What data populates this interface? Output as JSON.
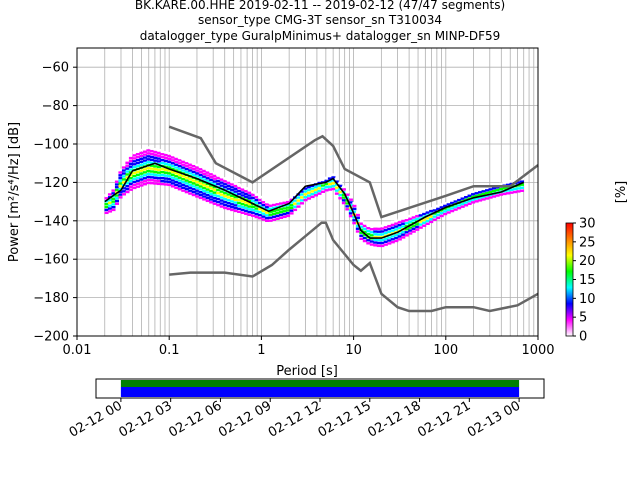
{
  "chart_data": {
    "type": "heatmap",
    "title_lines": [
      "BK.KARE.00.HHE   2019-02-11 -- 2019-02-12  (47/47 segments)",
      "sensor_type CMG-3T sensor_sn T310034",
      "datalogger_type GuralpMinimus+ datalogger_sn MINP-DF59"
    ],
    "xlabel": "Period [s]",
    "ylabel": "Power [m²/s⁴/Hz] [dB]",
    "x_scale": "log",
    "xlim": [
      0.01,
      1000
    ],
    "ylim": [
      -200,
      -50
    ],
    "x_ticks": [
      {
        "value": 0.01,
        "label": "0.01"
      },
      {
        "value": 0.1,
        "label": "0.1"
      },
      {
        "value": 1,
        "label": "1"
      },
      {
        "value": 10,
        "label": "10"
      },
      {
        "value": 100,
        "label": "100"
      },
      {
        "value": 1000,
        "label": "1000"
      }
    ],
    "y_ticks": [
      {
        "value": -60,
        "label": "−60"
      },
      {
        "value": -80,
        "label": "−80"
      },
      {
        "value": -100,
        "label": "−100"
      },
      {
        "value": -120,
        "label": "−120"
      },
      {
        "value": -140,
        "label": "−140"
      },
      {
        "value": -160,
        "label": "−160"
      },
      {
        "value": -180,
        "label": "−180"
      },
      {
        "value": -200,
        "label": "−200"
      }
    ],
    "grid": true,
    "colorbar": {
      "label": "[%]",
      "range": [
        0,
        30
      ],
      "ticks": [
        {
          "value": 0,
          "label": "0"
        },
        {
          "value": 5,
          "label": "5"
        },
        {
          "value": 10,
          "label": "10"
        },
        {
          "value": 15,
          "label": "15"
        },
        {
          "value": 20,
          "label": "20"
        },
        {
          "value": 25,
          "label": "25"
        },
        {
          "value": 30,
          "label": "30"
        }
      ],
      "colors": [
        "#ffffff",
        "#ff00ff",
        "#0000ff",
        "#00ffff",
        "#00ff00",
        "#ffff00",
        "#ff7f00",
        "#ff0000"
      ]
    },
    "mean_curve": {
      "color": "#000000",
      "points": [
        [
          0.02,
          -130
        ],
        [
          0.03,
          -124
        ],
        [
          0.04,
          -114
        ],
        [
          0.07,
          -110
        ],
        [
          0.1,
          -113
        ],
        [
          0.2,
          -118
        ],
        [
          0.4,
          -124
        ],
        [
          0.8,
          -131
        ],
        [
          1.2,
          -135
        ],
        [
          2,
          -131
        ],
        [
          2.5,
          -126
        ],
        [
          3,
          -122
        ],
        [
          5,
          -120
        ],
        [
          6,
          -118
        ],
        [
          8,
          -126
        ],
        [
          10,
          -136
        ],
        [
          12,
          -145
        ],
        [
          15,
          -149
        ],
        [
          20,
          -149
        ],
        [
          30,
          -146
        ],
        [
          60,
          -138
        ],
        [
          100,
          -133
        ],
        [
          200,
          -128
        ],
        [
          400,
          -125
        ],
        [
          700,
          -120
        ]
      ]
    },
    "noise_models": [
      {
        "name": "high",
        "color": "#666666",
        "points": [
          [
            0.1,
            -91
          ],
          [
            0.22,
            -97
          ],
          [
            0.32,
            -110
          ],
          [
            0.8,
            -120
          ],
          [
            3.8,
            -98
          ],
          [
            4.6,
            -96
          ],
          [
            6,
            -101
          ],
          [
            8,
            -113
          ],
          [
            15,
            -120
          ],
          [
            20,
            -138
          ],
          [
            100,
            -127
          ],
          [
            200,
            -122
          ],
          [
            500,
            -122
          ],
          [
            1000,
            -111
          ]
        ]
      },
      {
        "name": "low",
        "color": "#666666",
        "points": [
          [
            0.1,
            -168
          ],
          [
            0.17,
            -167
          ],
          [
            0.4,
            -167
          ],
          [
            0.8,
            -169
          ],
          [
            1.3,
            -163
          ],
          [
            2,
            -155
          ],
          [
            3,
            -148
          ],
          [
            4.5,
            -141
          ],
          [
            5,
            -141
          ],
          [
            6,
            -150
          ],
          [
            10,
            -163
          ],
          [
            12,
            -166
          ],
          [
            15,
            -162
          ],
          [
            20,
            -178
          ],
          [
            30,
            -185
          ],
          [
            40,
            -187
          ],
          [
            70,
            -187
          ],
          [
            100,
            -185
          ],
          [
            200,
            -185
          ],
          [
            300,
            -187
          ],
          [
            600,
            -184
          ],
          [
            1000,
            -178
          ]
        ]
      }
    ],
    "ppsd_band": {
      "points": [
        [
          0.02,
          -127,
          -137
        ],
        [
          0.025,
          -122,
          -135
        ],
        [
          0.03,
          -112,
          -128
        ],
        [
          0.04,
          -104,
          -124
        ],
        [
          0.06,
          -101,
          -121
        ],
        [
          0.1,
          -104,
          -122
        ],
        [
          0.2,
          -110,
          -128
        ],
        [
          0.4,
          -117,
          -134
        ],
        [
          0.8,
          -124,
          -138
        ],
        [
          1.2,
          -130,
          -141
        ],
        [
          2,
          -128,
          -138
        ],
        [
          3,
          -121,
          -130
        ],
        [
          5,
          -117,
          -125
        ],
        [
          6,
          -115,
          -124
        ],
        [
          8,
          -122,
          -132
        ],
        [
          10,
          -129,
          -141
        ],
        [
          12,
          -139,
          -150
        ],
        [
          15,
          -142,
          -153
        ],
        [
          20,
          -142,
          -154
        ],
        [
          30,
          -139,
          -151
        ],
        [
          60,
          -134,
          -143
        ],
        [
          100,
          -130,
          -137
        ],
        [
          200,
          -124,
          -131
        ],
        [
          400,
          -120,
          -127
        ],
        [
          700,
          -117,
          -125
        ]
      ]
    }
  },
  "coverage_chart": {
    "x_ticks": [
      "02-12 00",
      "02-12 03",
      "02-12 06",
      "02-12 09",
      "02-12 12",
      "02-12 15",
      "02-12 18",
      "02-12 21",
      "02-13 00"
    ],
    "xlim_hours": [
      -1.5,
      25.5
    ],
    "data_range_hours": [
      0,
      24
    ],
    "colors": {
      "top": "#008000",
      "bottom": "#0000ff"
    }
  }
}
